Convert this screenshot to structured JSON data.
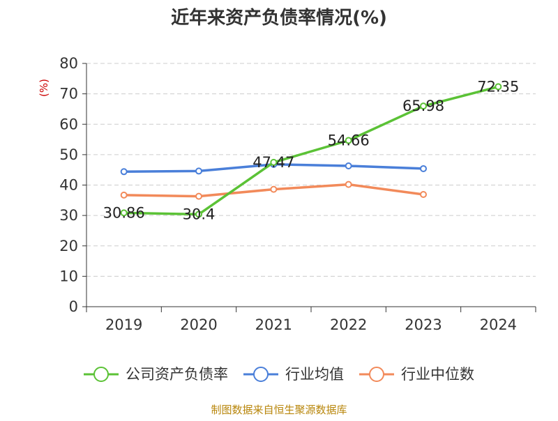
{
  "chart_data": {
    "type": "line",
    "title": "近年来资产负债率情况(%)",
    "ylabel": "(%)",
    "xlabel": "",
    "categories": [
      "2019",
      "2020",
      "2021",
      "2022",
      "2023",
      "2024"
    ],
    "ylim": [
      0,
      80
    ],
    "yticks": [
      0,
      10,
      20,
      30,
      40,
      50,
      60,
      70,
      80
    ],
    "grid": true,
    "legend_position": "bottom",
    "series": [
      {
        "name": "公司资产负债率",
        "color": "#5bc236",
        "values": [
          30.86,
          30.4,
          47.47,
          54.66,
          65.98,
          72.35
        ],
        "labels": [
          "30.86",
          "30.4",
          "47.47",
          "54.66",
          "65.98",
          "72.35"
        ]
      },
      {
        "name": "行业均值",
        "color": "#4a7fd9",
        "values": [
          44.4,
          44.6,
          46.8,
          46.3,
          45.4,
          null
        ]
      },
      {
        "name": "行业中位数",
        "color": "#f28a5a",
        "values": [
          36.7,
          36.3,
          38.6,
          40.2,
          36.9,
          null
        ]
      }
    ],
    "source": "制图数据来自恒生聚源数据库"
  }
}
